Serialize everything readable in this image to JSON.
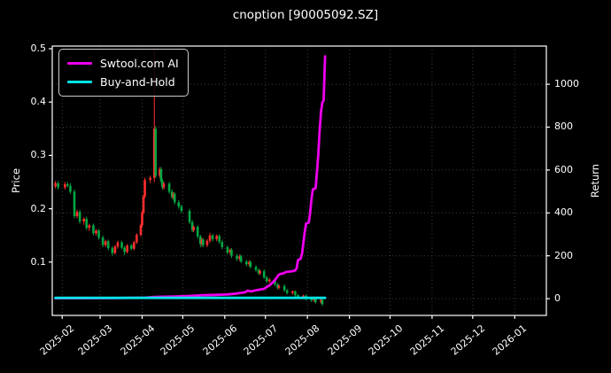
{
  "title": "cnoption [90005092.SZ]",
  "legend": {
    "items": [
      {
        "label": "Swtool.com AI",
        "color_key": "ai"
      },
      {
        "label": "Buy-and-Hold",
        "color_key": "buy_hold"
      }
    ]
  },
  "chart_data": {
    "type": "candlestick+line",
    "title": "cnoption [90005092.SZ]",
    "ylabel_left": "Price",
    "ylabel_right": "Return",
    "legend_position": "upper left",
    "grid": true,
    "colors": {
      "background": "#000000",
      "text": "#ffffff",
      "grid": "#3c3c3c",
      "spine": "#ffffff",
      "ai": "#ee00ee",
      "buy_hold": "#00e5e5",
      "up": "#ff2e2e",
      "down": "#00a842"
    },
    "x_start": "2025-01-24",
    "x_ticks": [
      {
        "date": "2025-02-01",
        "label": "2025-02"
      },
      {
        "date": "2025-03-01",
        "label": "2025-03"
      },
      {
        "date": "2025-04-01",
        "label": "2025-04"
      },
      {
        "date": "2025-05-01",
        "label": "2025-05"
      },
      {
        "date": "2025-06-01",
        "label": "2025-06"
      },
      {
        "date": "2025-07-01",
        "label": "2025-07"
      },
      {
        "date": "2025-08-01",
        "label": "2025-08"
      },
      {
        "date": "2025-09-01",
        "label": "2025-09"
      },
      {
        "date": "2025-10-01",
        "label": "2025-10"
      },
      {
        "date": "2025-11-01",
        "label": "2025-11"
      },
      {
        "date": "2025-12-01",
        "label": "2025-12"
      },
      {
        "date": "2026-01-01",
        "label": "2026-01"
      }
    ],
    "price_axis": {
      "min": 0,
      "max": 0.505,
      "ticks": [
        0.1,
        0.2,
        0.3,
        0.4,
        0.5
      ]
    },
    "return_axis": {
      "min": -78,
      "max": 1178,
      "ticks": [
        0,
        200,
        400,
        600,
        800,
        1000
      ]
    },
    "candles": [
      [
        "2025-01-27",
        0.242,
        0.252,
        0.238,
        0.248
      ],
      [
        "2025-01-29",
        0.248,
        0.252,
        0.236,
        0.24
      ],
      [
        "2025-02-03",
        0.24,
        0.25,
        0.236,
        0.246
      ],
      [
        "2025-02-05",
        0.246,
        0.25,
        0.24,
        0.243
      ],
      [
        "2025-02-07",
        0.243,
        0.248,
        0.228,
        0.232
      ],
      [
        "2025-02-10",
        0.232,
        0.236,
        0.182,
        0.186
      ],
      [
        "2025-02-12",
        0.186,
        0.198,
        0.182,
        0.194
      ],
      [
        "2025-02-14",
        0.194,
        0.198,
        0.172,
        0.176
      ],
      [
        "2025-02-17",
        0.176,
        0.184,
        0.17,
        0.181
      ],
      [
        "2025-02-19",
        0.181,
        0.185,
        0.16,
        0.164
      ],
      [
        "2025-02-21",
        0.164,
        0.172,
        0.158,
        0.169
      ],
      [
        "2025-02-24",
        0.169,
        0.172,
        0.15,
        0.154
      ],
      [
        "2025-02-26",
        0.154,
        0.162,
        0.15,
        0.159
      ],
      [
        "2025-02-28",
        0.159,
        0.162,
        0.142,
        0.146
      ],
      [
        "2025-03-03",
        0.146,
        0.15,
        0.128,
        0.132
      ],
      [
        "2025-03-05",
        0.132,
        0.142,
        0.128,
        0.139
      ],
      [
        "2025-03-07",
        0.139,
        0.142,
        0.122,
        0.126
      ],
      [
        "2025-03-10",
        0.126,
        0.13,
        0.112,
        0.117
      ],
      [
        "2025-03-12",
        0.117,
        0.132,
        0.114,
        0.129
      ],
      [
        "2025-03-14",
        0.129,
        0.14,
        0.125,
        0.137
      ],
      [
        "2025-03-17",
        0.137,
        0.14,
        0.124,
        0.127
      ],
      [
        "2025-03-19",
        0.127,
        0.13,
        0.113,
        0.119
      ],
      [
        "2025-03-21",
        0.119,
        0.134,
        0.116,
        0.131
      ],
      [
        "2025-03-24",
        0.131,
        0.134,
        0.122,
        0.125
      ],
      [
        "2025-03-26",
        0.125,
        0.14,
        0.122,
        0.137
      ],
      [
        "2025-03-28",
        0.137,
        0.154,
        0.134,
        0.151
      ],
      [
        "2025-03-31",
        0.151,
        0.172,
        0.148,
        0.169
      ],
      [
        "2025-04-01",
        0.169,
        0.196,
        0.166,
        0.193
      ],
      [
        "2025-04-02",
        0.193,
        0.226,
        0.19,
        0.223
      ],
      [
        "2025-04-03",
        0.223,
        0.258,
        0.22,
        0.254
      ],
      [
        "2025-04-07",
        0.254,
        0.262,
        0.248,
        0.258
      ],
      [
        "2025-04-10",
        0.258,
        0.5,
        0.25,
        0.35
      ],
      [
        "2025-04-11",
        0.35,
        0.355,
        0.258,
        0.262
      ],
      [
        "2025-04-14",
        0.262,
        0.278,
        0.258,
        0.274
      ],
      [
        "2025-04-15",
        0.274,
        0.278,
        0.248,
        0.252
      ],
      [
        "2025-04-16",
        0.252,
        0.256,
        0.236,
        0.24
      ],
      [
        "2025-04-17",
        0.24,
        0.25,
        0.236,
        0.247
      ],
      [
        "2025-04-21",
        0.247,
        0.25,
        0.228,
        0.232
      ],
      [
        "2025-04-23",
        0.232,
        0.236,
        0.218,
        0.222
      ],
      [
        "2025-04-24",
        0.222,
        0.231,
        0.218,
        0.228
      ],
      [
        "2025-04-25",
        0.228,
        0.231,
        0.208,
        0.212
      ],
      [
        "2025-04-28",
        0.212,
        0.216,
        0.2,
        0.204
      ],
      [
        "2025-04-30",
        0.204,
        0.208,
        0.192,
        0.196
      ],
      [
        "2025-05-06",
        0.196,
        0.2,
        0.171,
        0.175
      ],
      [
        "2025-05-08",
        0.175,
        0.179,
        0.156,
        0.16
      ],
      [
        "2025-05-09",
        0.16,
        0.169,
        0.156,
        0.166
      ],
      [
        "2025-05-12",
        0.166,
        0.169,
        0.144,
        0.148
      ],
      [
        "2025-05-14",
        0.148,
        0.151,
        0.128,
        0.134
      ],
      [
        "2025-05-15",
        0.134,
        0.145,
        0.13,
        0.142
      ],
      [
        "2025-05-16",
        0.142,
        0.145,
        0.128,
        0.132
      ],
      [
        "2025-05-19",
        0.132,
        0.143,
        0.128,
        0.14
      ],
      [
        "2025-05-21",
        0.14,
        0.155,
        0.136,
        0.15
      ],
      [
        "2025-05-23",
        0.15,
        0.153,
        0.139,
        0.143
      ],
      [
        "2025-05-26",
        0.143,
        0.152,
        0.139,
        0.149
      ],
      [
        "2025-05-28",
        0.149,
        0.152,
        0.134,
        0.138
      ],
      [
        "2025-05-30",
        0.138,
        0.141,
        0.124,
        0.128
      ],
      [
        "2025-06-03",
        0.128,
        0.131,
        0.114,
        0.118
      ],
      [
        "2025-06-05",
        0.118,
        0.126,
        0.114,
        0.123
      ],
      [
        "2025-06-06",
        0.123,
        0.126,
        0.108,
        0.112
      ],
      [
        "2025-06-10",
        0.112,
        0.115,
        0.102,
        0.106
      ],
      [
        "2025-06-12",
        0.106,
        0.114,
        0.102,
        0.111
      ],
      [
        "2025-06-13",
        0.111,
        0.114,
        0.098,
        0.101
      ],
      [
        "2025-06-17",
        0.101,
        0.104,
        0.092,
        0.096
      ],
      [
        "2025-06-19",
        0.096,
        0.103,
        0.092,
        0.1
      ],
      [
        "2025-06-20",
        0.1,
        0.103,
        0.088,
        0.091
      ],
      [
        "2025-06-24",
        0.091,
        0.094,
        0.082,
        0.085
      ],
      [
        "2025-06-26",
        0.085,
        0.088,
        0.076,
        0.079
      ],
      [
        "2025-06-27",
        0.079,
        0.086,
        0.076,
        0.083
      ],
      [
        "2025-06-30",
        0.083,
        0.086,
        0.068,
        0.071
      ],
      [
        "2025-07-02",
        0.071,
        0.074,
        0.061,
        0.064
      ],
      [
        "2025-07-04",
        0.064,
        0.07,
        0.061,
        0.067
      ],
      [
        "2025-07-08",
        0.067,
        0.07,
        0.055,
        0.058
      ],
      [
        "2025-07-10",
        0.058,
        0.061,
        0.049,
        0.052
      ],
      [
        "2025-07-11",
        0.052,
        0.058,
        0.049,
        0.055
      ],
      [
        "2025-07-15",
        0.055,
        0.058,
        0.044,
        0.047
      ],
      [
        "2025-07-17",
        0.047,
        0.05,
        0.039,
        0.042
      ],
      [
        "2025-07-21",
        0.042,
        0.047,
        0.039,
        0.045
      ],
      [
        "2025-07-23",
        0.045,
        0.047,
        0.035,
        0.038
      ],
      [
        "2025-07-25",
        0.038,
        0.04,
        0.031,
        0.034
      ],
      [
        "2025-07-29",
        0.034,
        0.039,
        0.031,
        0.037
      ],
      [
        "2025-07-31",
        0.037,
        0.039,
        0.028,
        0.031
      ],
      [
        "2025-08-04",
        0.031,
        0.033,
        0.025,
        0.028
      ],
      [
        "2025-08-06",
        0.028,
        0.034,
        0.025,
        0.032
      ],
      [
        "2025-08-07",
        0.032,
        0.034,
        0.022,
        0.025
      ],
      [
        "2025-08-11",
        0.025,
        0.031,
        0.022,
        0.029
      ],
      [
        "2025-08-12",
        0.029,
        0.031,
        0.018,
        0.021
      ]
    ],
    "series": {
      "ai": {
        "label": "Swtool.com AI",
        "axis": "return",
        "points": [
          [
            "2025-01-27",
            2
          ],
          [
            "2025-02-14",
            2
          ],
          [
            "2025-03-14",
            3
          ],
          [
            "2025-04-04",
            5
          ],
          [
            "2025-04-10",
            8
          ],
          [
            "2025-04-25",
            10
          ],
          [
            "2025-05-06",
            13
          ],
          [
            "2025-05-16",
            16
          ],
          [
            "2025-05-26",
            18
          ],
          [
            "2025-06-03",
            20
          ],
          [
            "2025-06-10",
            24
          ],
          [
            "2025-06-16",
            30
          ],
          [
            "2025-06-18",
            38
          ],
          [
            "2025-06-20",
            34
          ],
          [
            "2025-06-25",
            40
          ],
          [
            "2025-06-30",
            46
          ],
          [
            "2025-07-02",
            55
          ],
          [
            "2025-07-04",
            62
          ],
          [
            "2025-07-07",
            80
          ],
          [
            "2025-07-09",
            95
          ],
          [
            "2025-07-10",
            105
          ],
          [
            "2025-07-11",
            112
          ],
          [
            "2025-07-12",
            115
          ],
          [
            "2025-07-14",
            118
          ],
          [
            "2025-07-16",
            124
          ],
          [
            "2025-07-18",
            126
          ],
          [
            "2025-07-21",
            128
          ],
          [
            "2025-07-23",
            132
          ],
          [
            "2025-07-24",
            140
          ],
          [
            "2025-07-25",
            180
          ],
          [
            "2025-07-27",
            186
          ],
          [
            "2025-07-28",
            210
          ],
          [
            "2025-07-29",
            260
          ],
          [
            "2025-07-30",
            310
          ],
          [
            "2025-07-31",
            350
          ],
          [
            "2025-08-02",
            355
          ],
          [
            "2025-08-03",
            400
          ],
          [
            "2025-08-04",
            465
          ],
          [
            "2025-08-05",
            510
          ],
          [
            "2025-08-07",
            515
          ],
          [
            "2025-08-08",
            590
          ],
          [
            "2025-08-09",
            670
          ],
          [
            "2025-08-10",
            780
          ],
          [
            "2025-08-11",
            870
          ],
          [
            "2025-08-12",
            915
          ],
          [
            "2025-08-13",
            925
          ],
          [
            "2025-08-14",
            1130
          ]
        ]
      },
      "buy_hold": {
        "label": "Buy-and-Hold",
        "axis": "return",
        "points": [
          [
            "2025-01-27",
            4
          ],
          [
            "2025-08-14",
            4
          ]
        ]
      }
    }
  }
}
